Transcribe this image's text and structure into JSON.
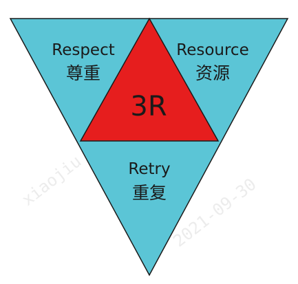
{
  "diagram": {
    "center_label": "3R",
    "sections": [
      {
        "key": "respect",
        "english": "Respect",
        "chinese": "尊重"
      },
      {
        "key": "resource",
        "english": "Resource",
        "chinese": "资源"
      },
      {
        "key": "retry",
        "english": "Retry",
        "chinese": "重复"
      }
    ]
  },
  "watermark": {
    "lines": [
      "xiaojiu",
      "2021-09-30"
    ]
  },
  "colors": {
    "outer_fill": "#5bc5d6",
    "center_fill": "#e61e1e",
    "outline": "#1a1a1a",
    "text": "#1a1a1a"
  }
}
